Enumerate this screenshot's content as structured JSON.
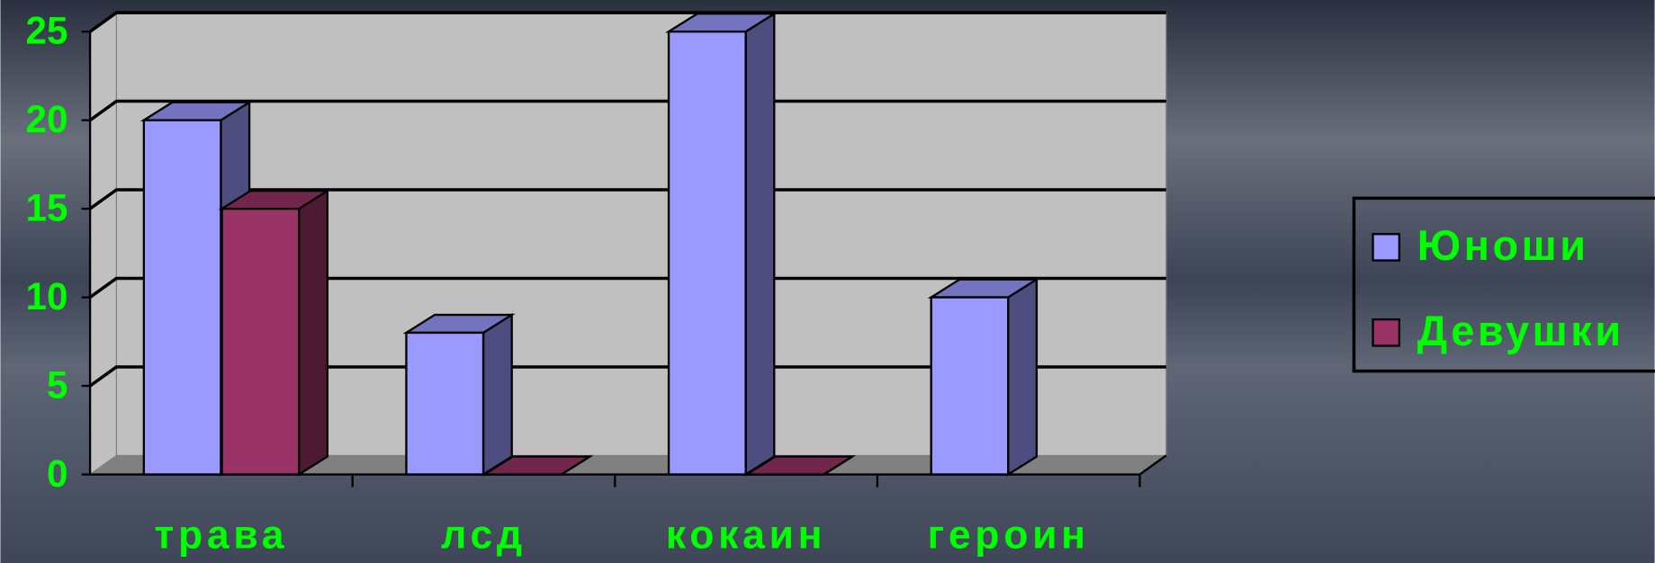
{
  "chart_data": {
    "type": "bar3d",
    "categories": [
      "трава",
      "лсд",
      "кокаин",
      "героин"
    ],
    "series": [
      {
        "name": "Юноши",
        "color": "#9999ff",
        "values": [
          20,
          8,
          25,
          10
        ]
      },
      {
        "name": "Девушки",
        "color": "#993366",
        "values": [
          15,
          0,
          0,
          null
        ]
      }
    ],
    "ylim": [
      0,
      25
    ],
    "yticks": [
      0,
      5,
      10,
      15,
      20,
      25
    ],
    "grid": true,
    "legend": "right"
  }
}
